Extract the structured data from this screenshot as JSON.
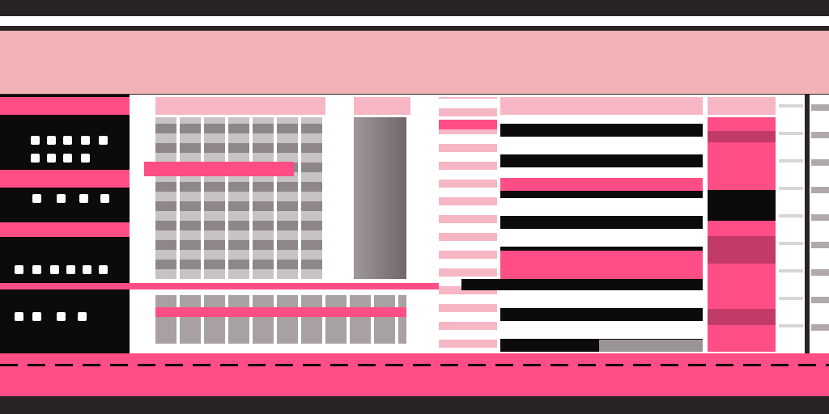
{
  "colors": {
    "frame": "#2a2326",
    "header": "#f2b3b8",
    "accent": "#ff4d86",
    "panel": "#0d0a0b",
    "cell_light": "#ffffff",
    "cell_grey": "#9a9396",
    "cell_pink": "#f7b6c3",
    "cell_dark_pink": "#c23a68"
  }
}
